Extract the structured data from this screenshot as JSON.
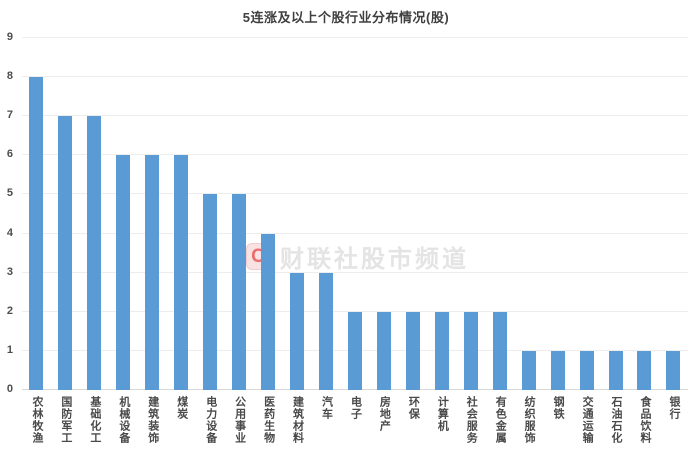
{
  "title": "5连涨及以上个股行业分布情况(股)",
  "watermark": {
    "logo_letter": "C",
    "text": "财联社股市频道"
  },
  "colors": {
    "bar": "#5B9BD5",
    "title_text": "#3f3f3f",
    "axis_text": "#4a4a4a",
    "gridline": "#ededed",
    "baseline": "#d9d9d9",
    "watermark_text": "#e4e4e4",
    "watermark_logo": "#ec6d6d"
  },
  "chart_data": {
    "type": "bar",
    "title": "5连涨及以上个股行业分布情况(股)",
    "categories": [
      "农林牧渔",
      "国防军工",
      "基础化工",
      "机械设备",
      "建筑装饰",
      "煤炭",
      "电力设备",
      "公用事业",
      "医药生物",
      "建筑材料",
      "汽车",
      "电子",
      "房地产",
      "环保",
      "计算机",
      "社会服务",
      "有色金属",
      "纺织服饰",
      "钢铁",
      "交通运输",
      "石油石化",
      "食品饮料",
      "银行"
    ],
    "values": [
      8,
      7,
      7,
      6,
      6,
      6,
      5,
      5,
      4,
      3,
      3,
      2,
      2,
      2,
      2,
      2,
      2,
      1,
      1,
      1,
      1,
      1,
      1
    ],
    "xlabel": "",
    "ylabel": "",
    "ylim": [
      0,
      9
    ],
    "ytick_step": 1,
    "grid": true,
    "legend": "none",
    "bar_color": "#5B9BD5"
  }
}
